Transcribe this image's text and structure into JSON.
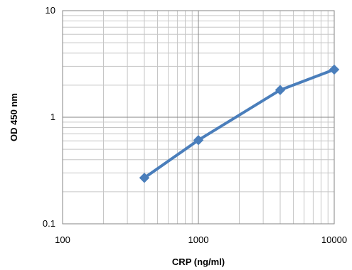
{
  "chart_data": {
    "type": "line",
    "title": "",
    "xlabel": "CRP (ng/ml)",
    "ylabel": "OD 450 nm",
    "xscale": "log",
    "yscale": "log",
    "xlim": [
      100,
      10000
    ],
    "ylim": [
      0.1,
      10
    ],
    "x_ticks": [
      100,
      1000,
      10000
    ],
    "x_tick_labels": [
      "100",
      "1000",
      "10000"
    ],
    "y_ticks": [
      0.1,
      1,
      10
    ],
    "y_tick_labels": [
      "0.1",
      "1",
      "10"
    ],
    "grid": true,
    "legend": "none",
    "series": [
      {
        "x": [
          400,
          1000,
          4000,
          10000
        ],
        "y": [
          0.27,
          0.61,
          1.8,
          2.8
        ],
        "color": "#4a7ebb",
        "marker": "diamond"
      }
    ],
    "colors": {
      "series": "#4a7ebb",
      "major_grid": "#868686",
      "minor_grid": "#c6c6c6",
      "frame": "#868686"
    }
  }
}
